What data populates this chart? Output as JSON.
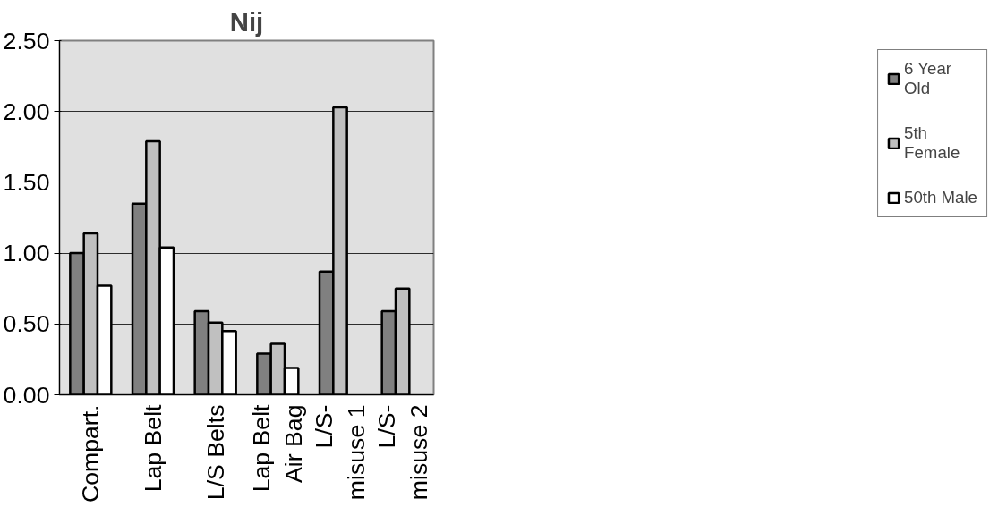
{
  "chart_data": {
    "type": "bar",
    "title": "Nij",
    "categories": [
      "Compart.",
      "Lap Belt",
      "L/S Belts",
      "Lap Belt Air Bag",
      "L/S-misuse 1",
      "L/S-misuse 2"
    ],
    "series": [
      {
        "name": "6 Year Old",
        "color": "#808080",
        "values": [
          1.0,
          1.35,
          0.59,
          0.29,
          0.87,
          0.59
        ]
      },
      {
        "name": "5th Female",
        "color": "#c0c0c0",
        "values": [
          1.14,
          1.79,
          0.51,
          0.36,
          2.03,
          0.75
        ]
      },
      {
        "name": "50th Male",
        "color": "#ffffff",
        "values": [
          0.77,
          1.04,
          0.45,
          0.19,
          null,
          null
        ]
      }
    ],
    "ylim": [
      0,
      2.5
    ],
    "yticks": [
      {
        "value": 0,
        "label": "0.00"
      },
      {
        "value": 0.5,
        "label": "0.50"
      },
      {
        "value": 1,
        "label": "1.00"
      },
      {
        "value": 1.5,
        "label": "1.50"
      },
      {
        "value": 2,
        "label": "2.00"
      },
      {
        "value": 2.5,
        "label": "2.50"
      }
    ],
    "grid": "y",
    "legend": "right"
  }
}
